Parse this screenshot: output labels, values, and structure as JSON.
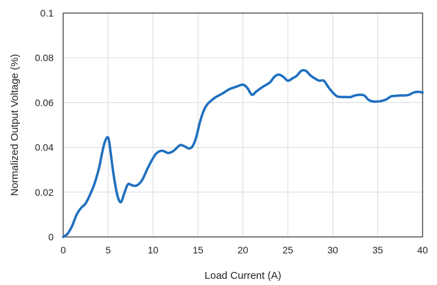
{
  "chart_data": {
    "type": "line",
    "title": "",
    "xlabel": "Load Current (A)",
    "ylabel": "Normalized Output Voltage (%)",
    "xlim": [
      0,
      40
    ],
    "ylim": [
      0,
      0.1
    ],
    "x_ticks": [
      0,
      5,
      10,
      15,
      20,
      25,
      30,
      35,
      40
    ],
    "y_ticks": [
      0,
      0.02,
      0.04,
      0.06,
      0.08,
      0.1
    ],
    "x_tick_labels": [
      "0",
      "5",
      "10",
      "15",
      "20",
      "25",
      "30",
      "35",
      "40"
    ],
    "y_tick_labels": [
      "0",
      "0.02",
      "0.04",
      "0.06",
      "0.08",
      "0.1"
    ],
    "grid": true,
    "legend": "none",
    "series": [
      {
        "color": "#1f6fbf",
        "x": [
          0,
          0.5,
          1,
          1.5,
          2,
          2.5,
          3,
          3.5,
          4,
          4.3,
          4.6,
          4.9,
          5.1,
          5.3,
          5.6,
          6,
          6.4,
          6.8,
          7.2,
          7.7,
          8.2,
          8.8,
          9.5,
          10.3,
          11,
          11.7,
          12.3,
          13,
          13.5,
          14,
          14.4,
          14.8,
          15.2,
          15.6,
          16,
          16.5,
          17,
          17.7,
          18.5,
          19.2,
          20,
          20.5,
          21,
          21.5,
          22.2,
          23,
          23.5,
          24,
          24.5,
          25,
          25.5,
          26,
          26.5,
          27,
          27.5,
          28,
          28.5,
          29,
          29.5,
          30,
          30.5,
          31,
          31.5,
          32,
          32.5,
          33,
          33.5,
          34,
          34.5,
          35,
          35.5,
          36,
          36.5,
          37,
          37.5,
          38,
          38.5,
          39,
          39.5,
          40
        ],
        "y": [
          0,
          0.0015,
          0.005,
          0.01,
          0.013,
          0.015,
          0.019,
          0.024,
          0.031,
          0.037,
          0.042,
          0.0445,
          0.043,
          0.037,
          0.028,
          0.019,
          0.0155,
          0.0195,
          0.0235,
          0.023,
          0.023,
          0.0255,
          0.0315,
          0.037,
          0.0385,
          0.0375,
          0.0385,
          0.041,
          0.0405,
          0.0395,
          0.0405,
          0.0445,
          0.051,
          0.056,
          0.059,
          0.061,
          0.0625,
          0.064,
          0.066,
          0.067,
          0.068,
          0.0665,
          0.0635,
          0.065,
          0.067,
          0.069,
          0.0715,
          0.0725,
          0.0715,
          0.0698,
          0.0708,
          0.072,
          0.0742,
          0.0742,
          0.0722,
          0.0708,
          0.0698,
          0.0698,
          0.067,
          0.0645,
          0.0628,
          0.0625,
          0.0625,
          0.0625,
          0.0632,
          0.0635,
          0.0632,
          0.0612,
          0.0605,
          0.0605,
          0.0608,
          0.0615,
          0.0628,
          0.063,
          0.0632,
          0.0632,
          0.0635,
          0.0645,
          0.0648,
          0.0645
        ]
      }
    ]
  }
}
